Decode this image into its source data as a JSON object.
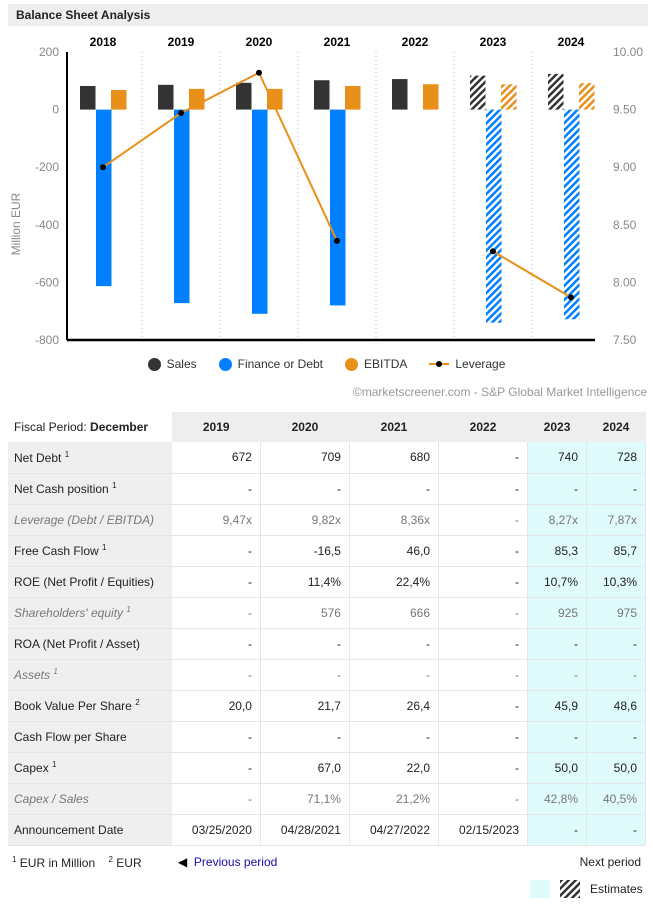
{
  "title": "Balance Sheet Analysis",
  "chart_data": {
    "type": "bar",
    "categories": [
      "2018",
      "2019",
      "2020",
      "2021",
      "2022",
      "2023",
      "2024"
    ],
    "estimates_from": "2023",
    "ylabel": "Million EUR",
    "ylim": [
      -800,
      200
    ],
    "yticks": [
      "200",
      "0",
      "-200",
      "-400",
      "-600",
      "-800"
    ],
    "y2lim": [
      7.5,
      10.0
    ],
    "y2ticks": [
      "10.00",
      "9.50",
      "9.00",
      "8.50",
      "8.00",
      "7.50"
    ],
    "series": [
      {
        "name": "Sales",
        "color": "#333333",
        "values": [
          82,
          86,
          93,
          102,
          106,
          118,
          124
        ]
      },
      {
        "name": "Finance or Debt",
        "color": "#0080ff",
        "values": [
          -613,
          -672,
          -709,
          -680,
          null,
          -740,
          -728
        ]
      },
      {
        "name": "EBITDA",
        "color": "#e8901a",
        "values": [
          68,
          72,
          72,
          82,
          88,
          88,
          92
        ]
      },
      {
        "name": "Leverage",
        "color": "#e8901a",
        "type": "line",
        "axis": "right",
        "values": [
          9.0,
          9.47,
          9.82,
          8.36,
          null,
          8.27,
          7.87
        ]
      }
    ],
    "legend": "bottom"
  },
  "credit": "©marketscreener.com - S&P Global Market Intelligence",
  "table": {
    "fiscal_label": "Fiscal Period: ",
    "fiscal_value": "December",
    "years": [
      "2019",
      "2020",
      "2021",
      "2022",
      "2023",
      "2024"
    ],
    "rows": [
      {
        "label": "Net Debt",
        "sup": "1",
        "values": [
          "672",
          "709",
          "680",
          "-",
          "740",
          "728"
        ]
      },
      {
        "label": "Net Cash position",
        "sup": "1",
        "values": [
          "-",
          "-",
          "-",
          "-",
          "-",
          "-"
        ]
      },
      {
        "label": "Leverage (Debt / EBITDA)",
        "sup": "",
        "italic": true,
        "values": [
          "9,47x",
          "9,82x",
          "8,36x",
          "-",
          "8,27x",
          "7,87x"
        ]
      },
      {
        "label": "Free Cash Flow",
        "sup": "1",
        "values": [
          "-",
          "-16,5",
          "46,0",
          "-",
          "85,3",
          "85,7"
        ]
      },
      {
        "label": "ROE (Net Profit / Equities)",
        "sup": "",
        "values": [
          "-",
          "11,4%",
          "22,4%",
          "-",
          "10,7%",
          "10,3%"
        ]
      },
      {
        "label": "Shareholders' equity",
        "sup": "1",
        "italic": true,
        "values": [
          "-",
          "576",
          "666",
          "-",
          "925",
          "975"
        ]
      },
      {
        "label": "ROA (Net Profit / Asset)",
        "sup": "",
        "values": [
          "-",
          "-",
          "-",
          "-",
          "-",
          "-"
        ]
      },
      {
        "label": "Assets",
        "sup": "1",
        "italic": true,
        "values": [
          "-",
          "-",
          "-",
          "-",
          "-",
          "-"
        ]
      },
      {
        "label": "Book Value Per Share",
        "sup": "2",
        "values": [
          "20,0",
          "21,7",
          "26,4",
          "-",
          "45,9",
          "48,6"
        ]
      },
      {
        "label": "Cash Flow per Share",
        "sup": "",
        "values": [
          "-",
          "-",
          "-",
          "-",
          "-",
          "-"
        ]
      },
      {
        "label": "Capex",
        "sup": "1",
        "values": [
          "-",
          "67,0",
          "22,0",
          "-",
          "50,0",
          "50,0"
        ]
      },
      {
        "label": "Capex / Sales",
        "sup": "",
        "italic": true,
        "values": [
          "-",
          "71,1%",
          "21,2%",
          "-",
          "42,8%",
          "40,5%"
        ]
      },
      {
        "label": "Announcement Date",
        "sup": "",
        "values": [
          "03/25/2020",
          "04/28/2021",
          "04/27/2022",
          "02/15/2023",
          "-",
          "-"
        ]
      }
    ]
  },
  "footer": {
    "note1_sup": "1",
    "note1": " EUR in Million",
    "note2_sup": "2",
    "note2": " EUR",
    "prev": "Previous period",
    "next": "Next period",
    "estimates": "Estimates"
  }
}
